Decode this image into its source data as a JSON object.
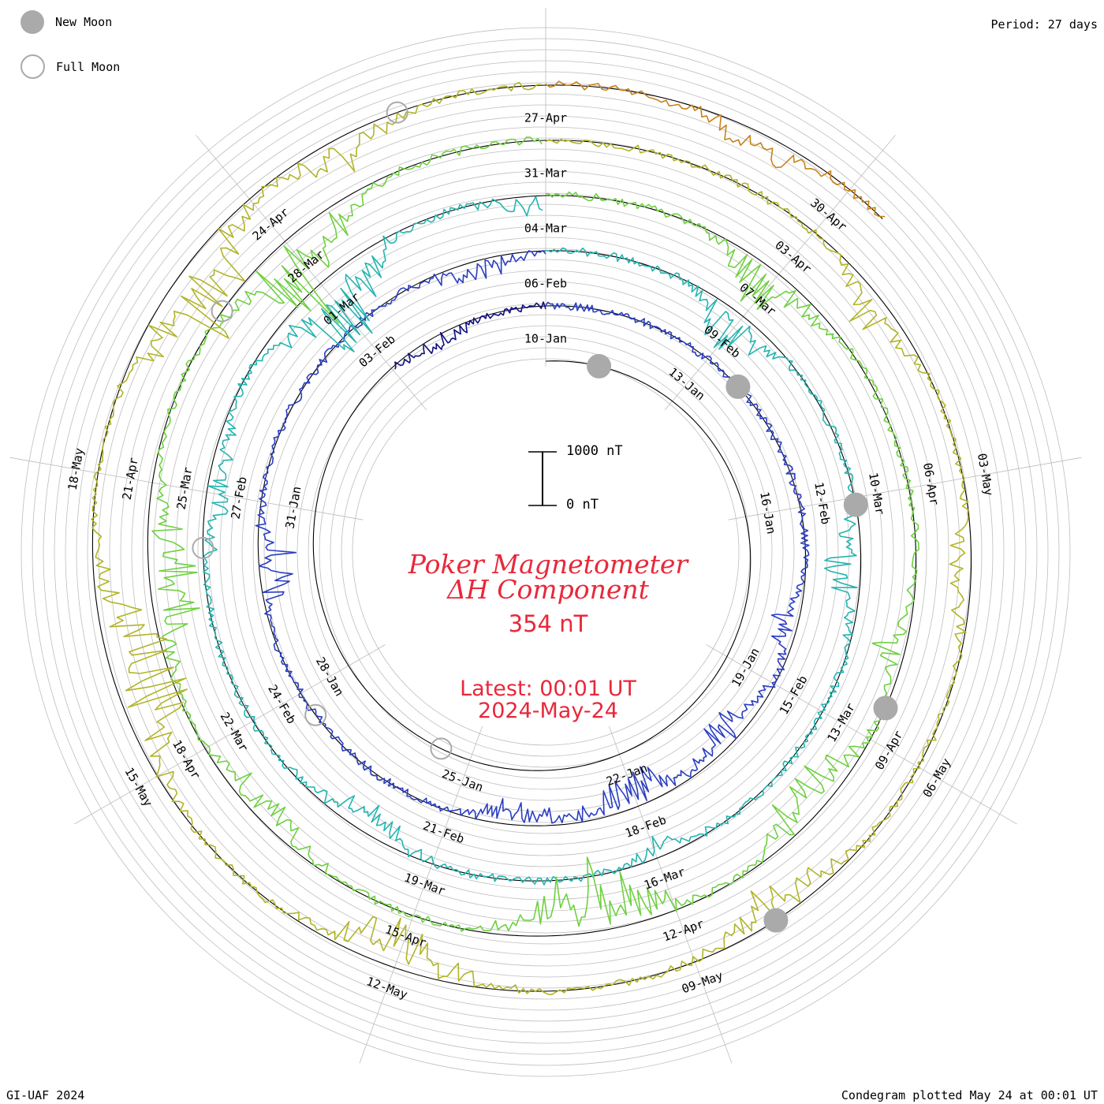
{
  "legend": {
    "new_moon_label": "New Moon",
    "full_moon_label": "Full Moon"
  },
  "period_label": "Period: 27 days",
  "footer_left": "GI-UAF 2024",
  "footer_right": "Condegram plotted May 24 at 00:01 UT",
  "title_line1": "Poker Magnetometer",
  "title_line2": "ΔH Component",
  "current_value": "354 nT",
  "latest_line1": "Latest: 00:01 UT",
  "latest_line2": "2024-May-24",
  "scale_top_label": "1000 nT",
  "scale_bottom_label": "0 nT",
  "colors": {
    "title": "#e8283a",
    "grid": "#bdbdbd",
    "moon": "#aaaaaa",
    "series": [
      "#000000",
      "#101080",
      "#2a3ec2",
      "#24b4b0",
      "#6ed040",
      "#b2b428",
      "#c88218",
      "#c04010",
      "#b51818"
    ]
  },
  "chart_data": {
    "type": "line",
    "layout": "spiral condegram",
    "period_days": 27,
    "ylabel": "ΔH (nT)",
    "scale_bar_nT": [
      0,
      1000
    ],
    "series": [
      {
        "start": "2024-01-10",
        "base_nT": 0,
        "disturbances": [
          [
            12,
            0.4,
            0.5
          ],
          [
            13,
            0.9,
            0.3
          ],
          [
            14,
            0.6,
            0.4
          ],
          [
            17,
            0.5,
            0.5
          ],
          [
            19,
            0.6,
            0.4
          ],
          [
            22,
            0.4,
            0.6
          ],
          [
            25,
            0.5,
            0.5
          ],
          [
            29,
            1.0,
            0.4
          ],
          [
            32,
            0.6,
            0.5
          ],
          [
            34,
            0.9,
            0.4
          ]
        ]
      },
      {
        "start": "2024-02-06",
        "base_nT": 0,
        "disturbances": [
          [
            8,
            0.8,
            0.5
          ],
          [
            10,
            1.0,
            0.5
          ],
          [
            12,
            1.2,
            0.6
          ],
          [
            14,
            0.8,
            0.5
          ],
          [
            20,
            1.2,
            0.4
          ],
          [
            26,
            0.8,
            0.4
          ]
        ]
      },
      {
        "start": "2024-03-04",
        "base_nT": 0,
        "disturbances": [
          [
            3,
            1.5,
            0.4
          ],
          [
            7,
            1.2,
            0.5
          ],
          [
            12,
            0.6,
            0.4
          ],
          [
            16,
            1.0,
            0.5
          ],
          [
            21,
            0.8,
            0.6
          ],
          [
            24,
            2.6,
            0.5
          ],
          [
            27,
            1.0,
            0.4
          ]
        ]
      },
      {
        "start": "2024-03-31",
        "base_nT": 0,
        "disturbances": [
          [
            3,
            1.4,
            0.5
          ],
          [
            8,
            1.0,
            0.4
          ],
          [
            10,
            1.5,
            0.5
          ],
          [
            13,
            2.2,
            0.6
          ],
          [
            17,
            1.0,
            0.5
          ],
          [
            20,
            1.6,
            0.6
          ],
          [
            24,
            3.2,
            0.5
          ]
        ]
      },
      {
        "start": "2024-04-27",
        "base_nT": 0,
        "disturbances": [
          [
            4,
            1.0,
            0.4
          ],
          [
            7,
            1.0,
            0.4
          ],
          [
            11,
            1.0,
            0.5
          ],
          [
            15,
            1.6,
            0.5
          ],
          [
            19,
            2.4,
            0.6
          ],
          [
            23,
            2.2,
            0.5
          ],
          [
            25,
            1.0,
            0.4
          ]
        ]
      },
      {
        "start": "2024-05-24",
        "base_nT": 0,
        "disturbances": [
          [
            2,
            1.0,
            0.4
          ],
          [
            5,
            1.5,
            0.5
          ],
          [
            8,
            1.0,
            0.4
          ],
          [
            13,
            1.4,
            0.5
          ],
          [
            14,
            5.5,
            0.9
          ],
          [
            17,
            1.6,
            0.5
          ],
          [
            20,
            1.2,
            0.4
          ],
          [
            23,
            0.8,
            0.4
          ]
        ]
      }
    ],
    "tick_labels": [
      {
        "text": "10-Jan",
        "day": 0
      },
      {
        "text": "13-Jan",
        "day": 3
      },
      {
        "text": "16-Jan",
        "day": 6
      },
      {
        "text": "19-Jan",
        "day": 9
      },
      {
        "text": "22-Jan",
        "day": 12
      },
      {
        "text": "25-Jan",
        "day": 15
      },
      {
        "text": "28-Jan",
        "day": 18
      },
      {
        "text": "31-Jan",
        "day": 21
      },
      {
        "text": "03-Feb",
        "day": 24
      },
      {
        "text": "06-Feb",
        "day": 27
      },
      {
        "text": "09-Feb",
        "day": 30
      },
      {
        "text": "12-Feb",
        "day": 33
      },
      {
        "text": "15-Feb",
        "day": 36
      },
      {
        "text": "18-Feb",
        "day": 39
      },
      {
        "text": "21-Feb",
        "day": 42
      },
      {
        "text": "24-Feb",
        "day": 45
      },
      {
        "text": "27-Feb",
        "day": 48
      },
      {
        "text": "01-Mar",
        "day": 51
      },
      {
        "text": "04-Mar",
        "day": 54
      },
      {
        "text": "07-Mar",
        "day": 57
      },
      {
        "text": "10-Mar",
        "day": 60
      },
      {
        "text": "13-Mar",
        "day": 63
      },
      {
        "text": "16-Mar",
        "day": 66
      },
      {
        "text": "19-Mar",
        "day": 69
      },
      {
        "text": "22-Mar",
        "day": 72
      },
      {
        "text": "25-Mar",
        "day": 75
      },
      {
        "text": "28-Mar",
        "day": 78
      },
      {
        "text": "31-Mar",
        "day": 81
      },
      {
        "text": "03-Apr",
        "day": 84
      },
      {
        "text": "06-Apr",
        "day": 87
      },
      {
        "text": "09-Apr",
        "day": 90
      },
      {
        "text": "12-Apr",
        "day": 93
      },
      {
        "text": "15-Apr",
        "day": 96
      },
      {
        "text": "18-Apr",
        "day": 99
      },
      {
        "text": "21-Apr",
        "day": 102
      },
      {
        "text": "24-Apr",
        "day": 105
      },
      {
        "text": "27-Apr",
        "day": 108
      },
      {
        "text": "30-Apr",
        "day": 111
      },
      {
        "text": "03-May",
        "day": 114
      },
      {
        "text": "06-May",
        "day": 117
      },
      {
        "text": "09-May",
        "day": 120
      },
      {
        "text": "12-May",
        "day": 123
      },
      {
        "text": "15-May",
        "day": 126
      },
      {
        "text": "18-May",
        "day": 129
      }
    ],
    "new_moons_day": [
      1.2,
      30.7,
      60.1,
      89.6,
      119.1
    ],
    "full_moons_day": [
      15.6,
      44.6,
      74.3,
      104.0,
      133.6
    ]
  }
}
